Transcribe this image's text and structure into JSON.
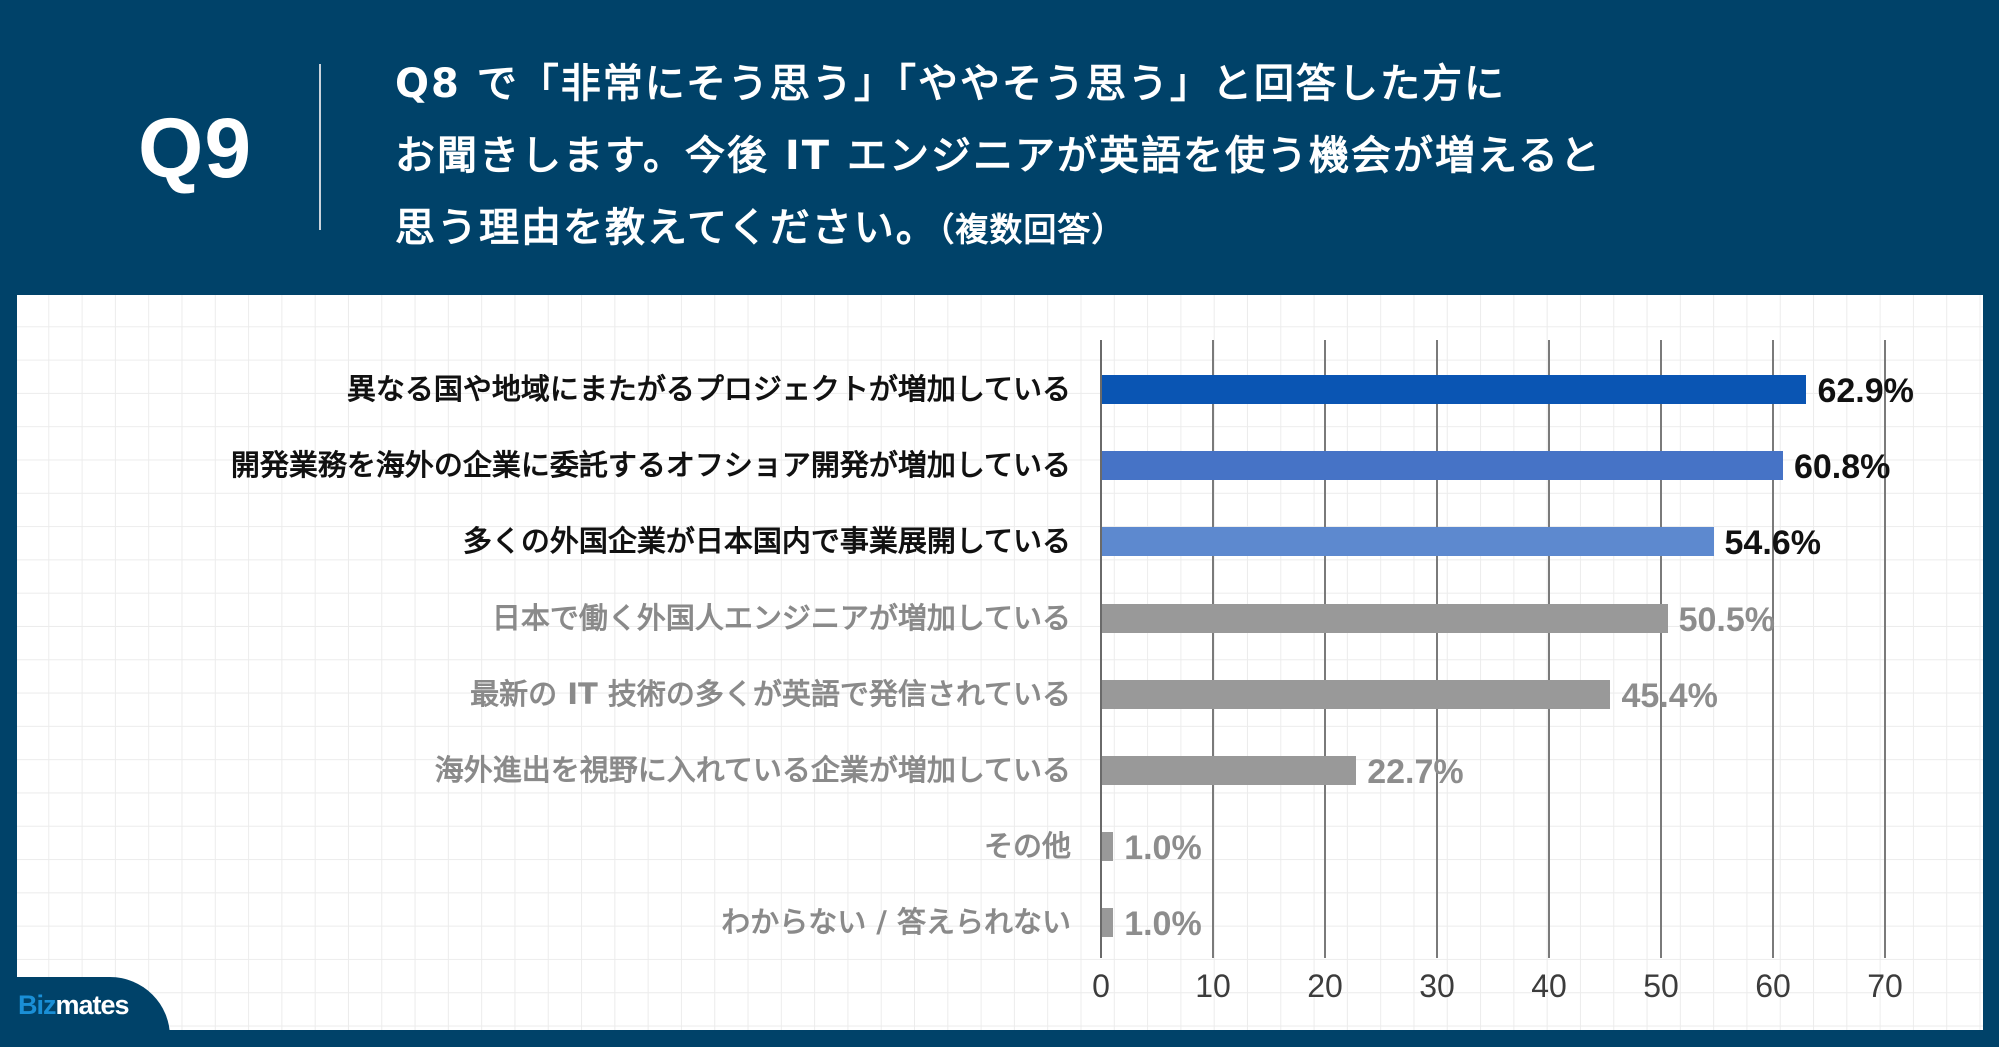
{
  "header": {
    "question_number": "Q9",
    "title_lines": [
      "Q8 で「非常にそう思う」「ややそう思う」と回答した方に",
      "お聞きします。今後 IT エンジニアが英語を使う機会が増えると",
      "思う理由を教えてください。"
    ],
    "title_note": "（複数回答）"
  },
  "brand": {
    "logo_part1": "Biz",
    "logo_part2": "mates"
  },
  "colors": {
    "header_bg": "#004269",
    "bar_1": "#0a55b3",
    "bar_2": "#4673c6",
    "bar_3": "#5d89cf",
    "bar_gray": "#999999",
    "logo_accent": "#1a8fd6"
  },
  "chart_data": {
    "type": "bar",
    "orientation": "horizontal",
    "title": "今後 IT エンジニアが英語を使う機会が増えると思う理由（複数回答）",
    "xlabel": "",
    "ylabel": "",
    "xlim": [
      0,
      70
    ],
    "x_ticks": [
      0,
      10,
      20,
      30,
      40,
      50,
      60,
      70
    ],
    "grid": true,
    "categories": [
      "異なる国や地域にまたがるプロジェクトが増加している",
      "開発業務を海外の企業に委託するオフショア開発が増加している",
      "多くの外国企業が日本国内で事業展開している",
      "日本で働く外国人エンジニアが増加している",
      "最新の IT 技術の多くが英語で発信されている",
      "海外進出を視野に入れている企業が増加している",
      "その他",
      "わからない / 答えられない"
    ],
    "values": [
      62.9,
      60.8,
      54.6,
      50.5,
      45.4,
      22.7,
      1.0,
      1.0
    ],
    "value_labels": [
      "62.9%",
      "60.8%",
      "54.6%",
      "50.5%",
      "45.4%",
      "22.7%",
      "1.0%",
      "1.0%"
    ],
    "unit": "%"
  },
  "tick_labels": [
    "0",
    "10",
    "20",
    "30",
    "40",
    "50",
    "60",
    "70"
  ]
}
